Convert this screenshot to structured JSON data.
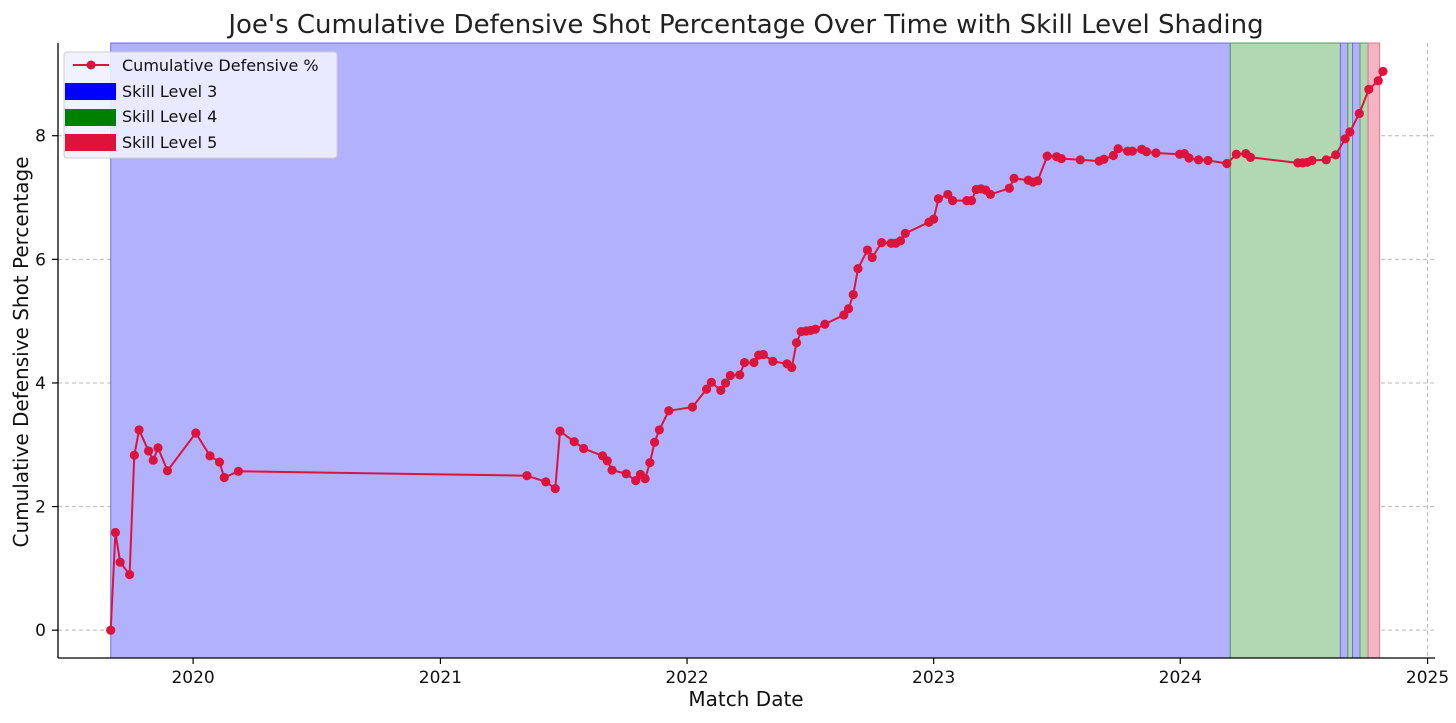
{
  "chart_data": {
    "type": "line",
    "title": "Joe's Cumulative Defensive Shot Percentage Over Time with Skill Level Shading",
    "xlabel": "Match Date",
    "ylabel": "Cumulative Defensive Shot Percentage",
    "xlim": [
      "2019-06-15",
      "2025-01-12"
    ],
    "ylim": [
      -0.45,
      9.5
    ],
    "x_ticks": [
      "2020-01-01",
      "2021-01-01",
      "2022-01-01",
      "2023-01-01",
      "2024-01-01",
      "2025-01-01"
    ],
    "x_tick_labels": [
      "2020",
      "2021",
      "2022",
      "2023",
      "2024",
      "2025"
    ],
    "y_ticks": [
      0,
      2,
      4,
      6,
      8
    ],
    "y_tick_labels": [
      "0",
      "2",
      "4",
      "6",
      "8"
    ],
    "grid": true,
    "legend_position": "top-left",
    "legend": {
      "line": "Cumulative Defensive %",
      "levels": [
        "Skill Level 3",
        "Skill Level 4",
        "Skill Level 5"
      ]
    },
    "colors": {
      "line": "#dc143c",
      "level3_swatch": "#0000ff",
      "level4_swatch": "#008000",
      "level5_swatch": "#dc143c",
      "level3_fill": "#b1b1fc",
      "level4_fill": "#b2d8b2",
      "level5_fill": "#f4b4c1"
    },
    "shading": [
      {
        "level": "Skill Level 3",
        "start": "2019-09-01",
        "end": "2024-03-15"
      },
      {
        "level": "Skill Level 4",
        "start": "2024-03-15",
        "end": "2024-08-25"
      },
      {
        "level": "Skill Level 3",
        "start": "2024-08-25",
        "end": "2024-09-05"
      },
      {
        "level": "Skill Level 4",
        "start": "2024-09-05",
        "end": "2024-09-12"
      },
      {
        "level": "Skill Level 3",
        "start": "2024-09-12",
        "end": "2024-09-23"
      },
      {
        "level": "Skill Level 4",
        "start": "2024-09-23",
        "end": "2024-10-05"
      },
      {
        "level": "Skill Level 5",
        "start": "2024-10-05",
        "end": "2024-10-22"
      }
    ],
    "series": [
      {
        "name": "Cumulative Defensive %",
        "points": [
          [
            "2019-09-01",
            0.0
          ],
          [
            "2019-09-08",
            1.58
          ],
          [
            "2019-09-15",
            1.1
          ],
          [
            "2019-09-29",
            0.9
          ],
          [
            "2019-10-06",
            2.83
          ],
          [
            "2019-10-13",
            3.24
          ],
          [
            "2019-10-27",
            2.9
          ],
          [
            "2019-11-03",
            2.75
          ],
          [
            "2019-11-10",
            2.95
          ],
          [
            "2019-11-24",
            2.58
          ],
          [
            "2020-01-05",
            3.19
          ],
          [
            "2020-01-26",
            2.82
          ],
          [
            "2020-02-09",
            2.72
          ],
          [
            "2020-02-16",
            2.47
          ],
          [
            "2020-03-08",
            2.57
          ],
          [
            "2021-05-09",
            2.5
          ],
          [
            "2021-06-06",
            2.4
          ],
          [
            "2021-06-20",
            2.29
          ],
          [
            "2021-06-27",
            3.22
          ],
          [
            "2021-07-18",
            3.05
          ],
          [
            "2021-08-01",
            2.94
          ],
          [
            "2021-08-29",
            2.82
          ],
          [
            "2021-09-05",
            2.74
          ],
          [
            "2021-09-12",
            2.59
          ],
          [
            "2021-10-03",
            2.53
          ],
          [
            "2021-10-17",
            2.42
          ],
          [
            "2021-10-24",
            2.52
          ],
          [
            "2021-10-31",
            2.45
          ],
          [
            "2021-11-07",
            2.71
          ],
          [
            "2021-11-14",
            3.04
          ],
          [
            "2021-11-21",
            3.24
          ],
          [
            "2021-12-05",
            3.55
          ],
          [
            "2022-01-09",
            3.61
          ],
          [
            "2022-01-30",
            3.9
          ],
          [
            "2022-02-06",
            4.01
          ],
          [
            "2022-02-20",
            3.88
          ],
          [
            "2022-02-27",
            4.0
          ],
          [
            "2022-03-06",
            4.12
          ],
          [
            "2022-03-20",
            4.13
          ],
          [
            "2022-03-27",
            4.33
          ],
          [
            "2022-04-10",
            4.33
          ],
          [
            "2022-04-17",
            4.45
          ],
          [
            "2022-04-24",
            4.46
          ],
          [
            "2022-05-08",
            4.35
          ],
          [
            "2022-05-29",
            4.31
          ],
          [
            "2022-06-05",
            4.25
          ],
          [
            "2022-06-12",
            4.65
          ],
          [
            "2022-06-19",
            4.83
          ],
          [
            "2022-06-26",
            4.84
          ],
          [
            "2022-07-03",
            4.85
          ],
          [
            "2022-07-10",
            4.87
          ],
          [
            "2022-07-24",
            4.95
          ],
          [
            "2022-08-21",
            5.1
          ],
          [
            "2022-08-28",
            5.2
          ],
          [
            "2022-09-04",
            5.43
          ],
          [
            "2022-09-11",
            5.85
          ],
          [
            "2022-09-25",
            6.15
          ],
          [
            "2022-10-02",
            6.03
          ],
          [
            "2022-10-16",
            6.27
          ],
          [
            "2022-10-30",
            6.26
          ],
          [
            "2022-11-06",
            6.26
          ],
          [
            "2022-11-13",
            6.3
          ],
          [
            "2022-11-20",
            6.42
          ],
          [
            "2022-12-25",
            6.6
          ],
          [
            "2023-01-01",
            6.65
          ],
          [
            "2023-01-08",
            6.98
          ],
          [
            "2023-01-22",
            7.05
          ],
          [
            "2023-01-29",
            6.95
          ],
          [
            "2023-02-19",
            6.95
          ],
          [
            "2023-02-26",
            6.95
          ],
          [
            "2023-03-05",
            7.13
          ],
          [
            "2023-03-12",
            7.14
          ],
          [
            "2023-03-19",
            7.12
          ],
          [
            "2023-03-26",
            7.05
          ],
          [
            "2023-04-23",
            7.15
          ],
          [
            "2023-04-30",
            7.31
          ],
          [
            "2023-05-21",
            7.28
          ],
          [
            "2023-05-28",
            7.25
          ],
          [
            "2023-06-04",
            7.27
          ],
          [
            "2023-06-18",
            7.67
          ],
          [
            "2023-07-02",
            7.66
          ],
          [
            "2023-07-09",
            7.63
          ],
          [
            "2023-08-06",
            7.61
          ],
          [
            "2023-09-03",
            7.59
          ],
          [
            "2023-09-10",
            7.62
          ],
          [
            "2023-09-24",
            7.68
          ],
          [
            "2023-10-01",
            7.79
          ],
          [
            "2023-10-15",
            7.75
          ],
          [
            "2023-10-22",
            7.75
          ],
          [
            "2023-11-05",
            7.78
          ],
          [
            "2023-11-12",
            7.74
          ],
          [
            "2023-11-26",
            7.72
          ],
          [
            "2023-12-31",
            7.7
          ],
          [
            "2024-01-07",
            7.71
          ],
          [
            "2024-01-14",
            7.64
          ],
          [
            "2024-01-28",
            7.61
          ],
          [
            "2024-02-11",
            7.6
          ],
          [
            "2024-03-10",
            7.55
          ],
          [
            "2024-03-24",
            7.7
          ],
          [
            "2024-04-07",
            7.71
          ],
          [
            "2024-04-14",
            7.65
          ],
          [
            "2024-06-23",
            7.56
          ],
          [
            "2024-06-30",
            7.56
          ],
          [
            "2024-07-07",
            7.57
          ],
          [
            "2024-07-14",
            7.6
          ],
          [
            "2024-08-04",
            7.61
          ],
          [
            "2024-08-18",
            7.69
          ],
          [
            "2024-09-01",
            7.95
          ],
          [
            "2024-09-08",
            8.06
          ],
          [
            "2024-09-22",
            8.36
          ],
          [
            "2024-10-06",
            8.75
          ],
          [
            "2024-10-20",
            8.89
          ],
          [
            "2024-10-27",
            9.04
          ]
        ]
      }
    ]
  }
}
